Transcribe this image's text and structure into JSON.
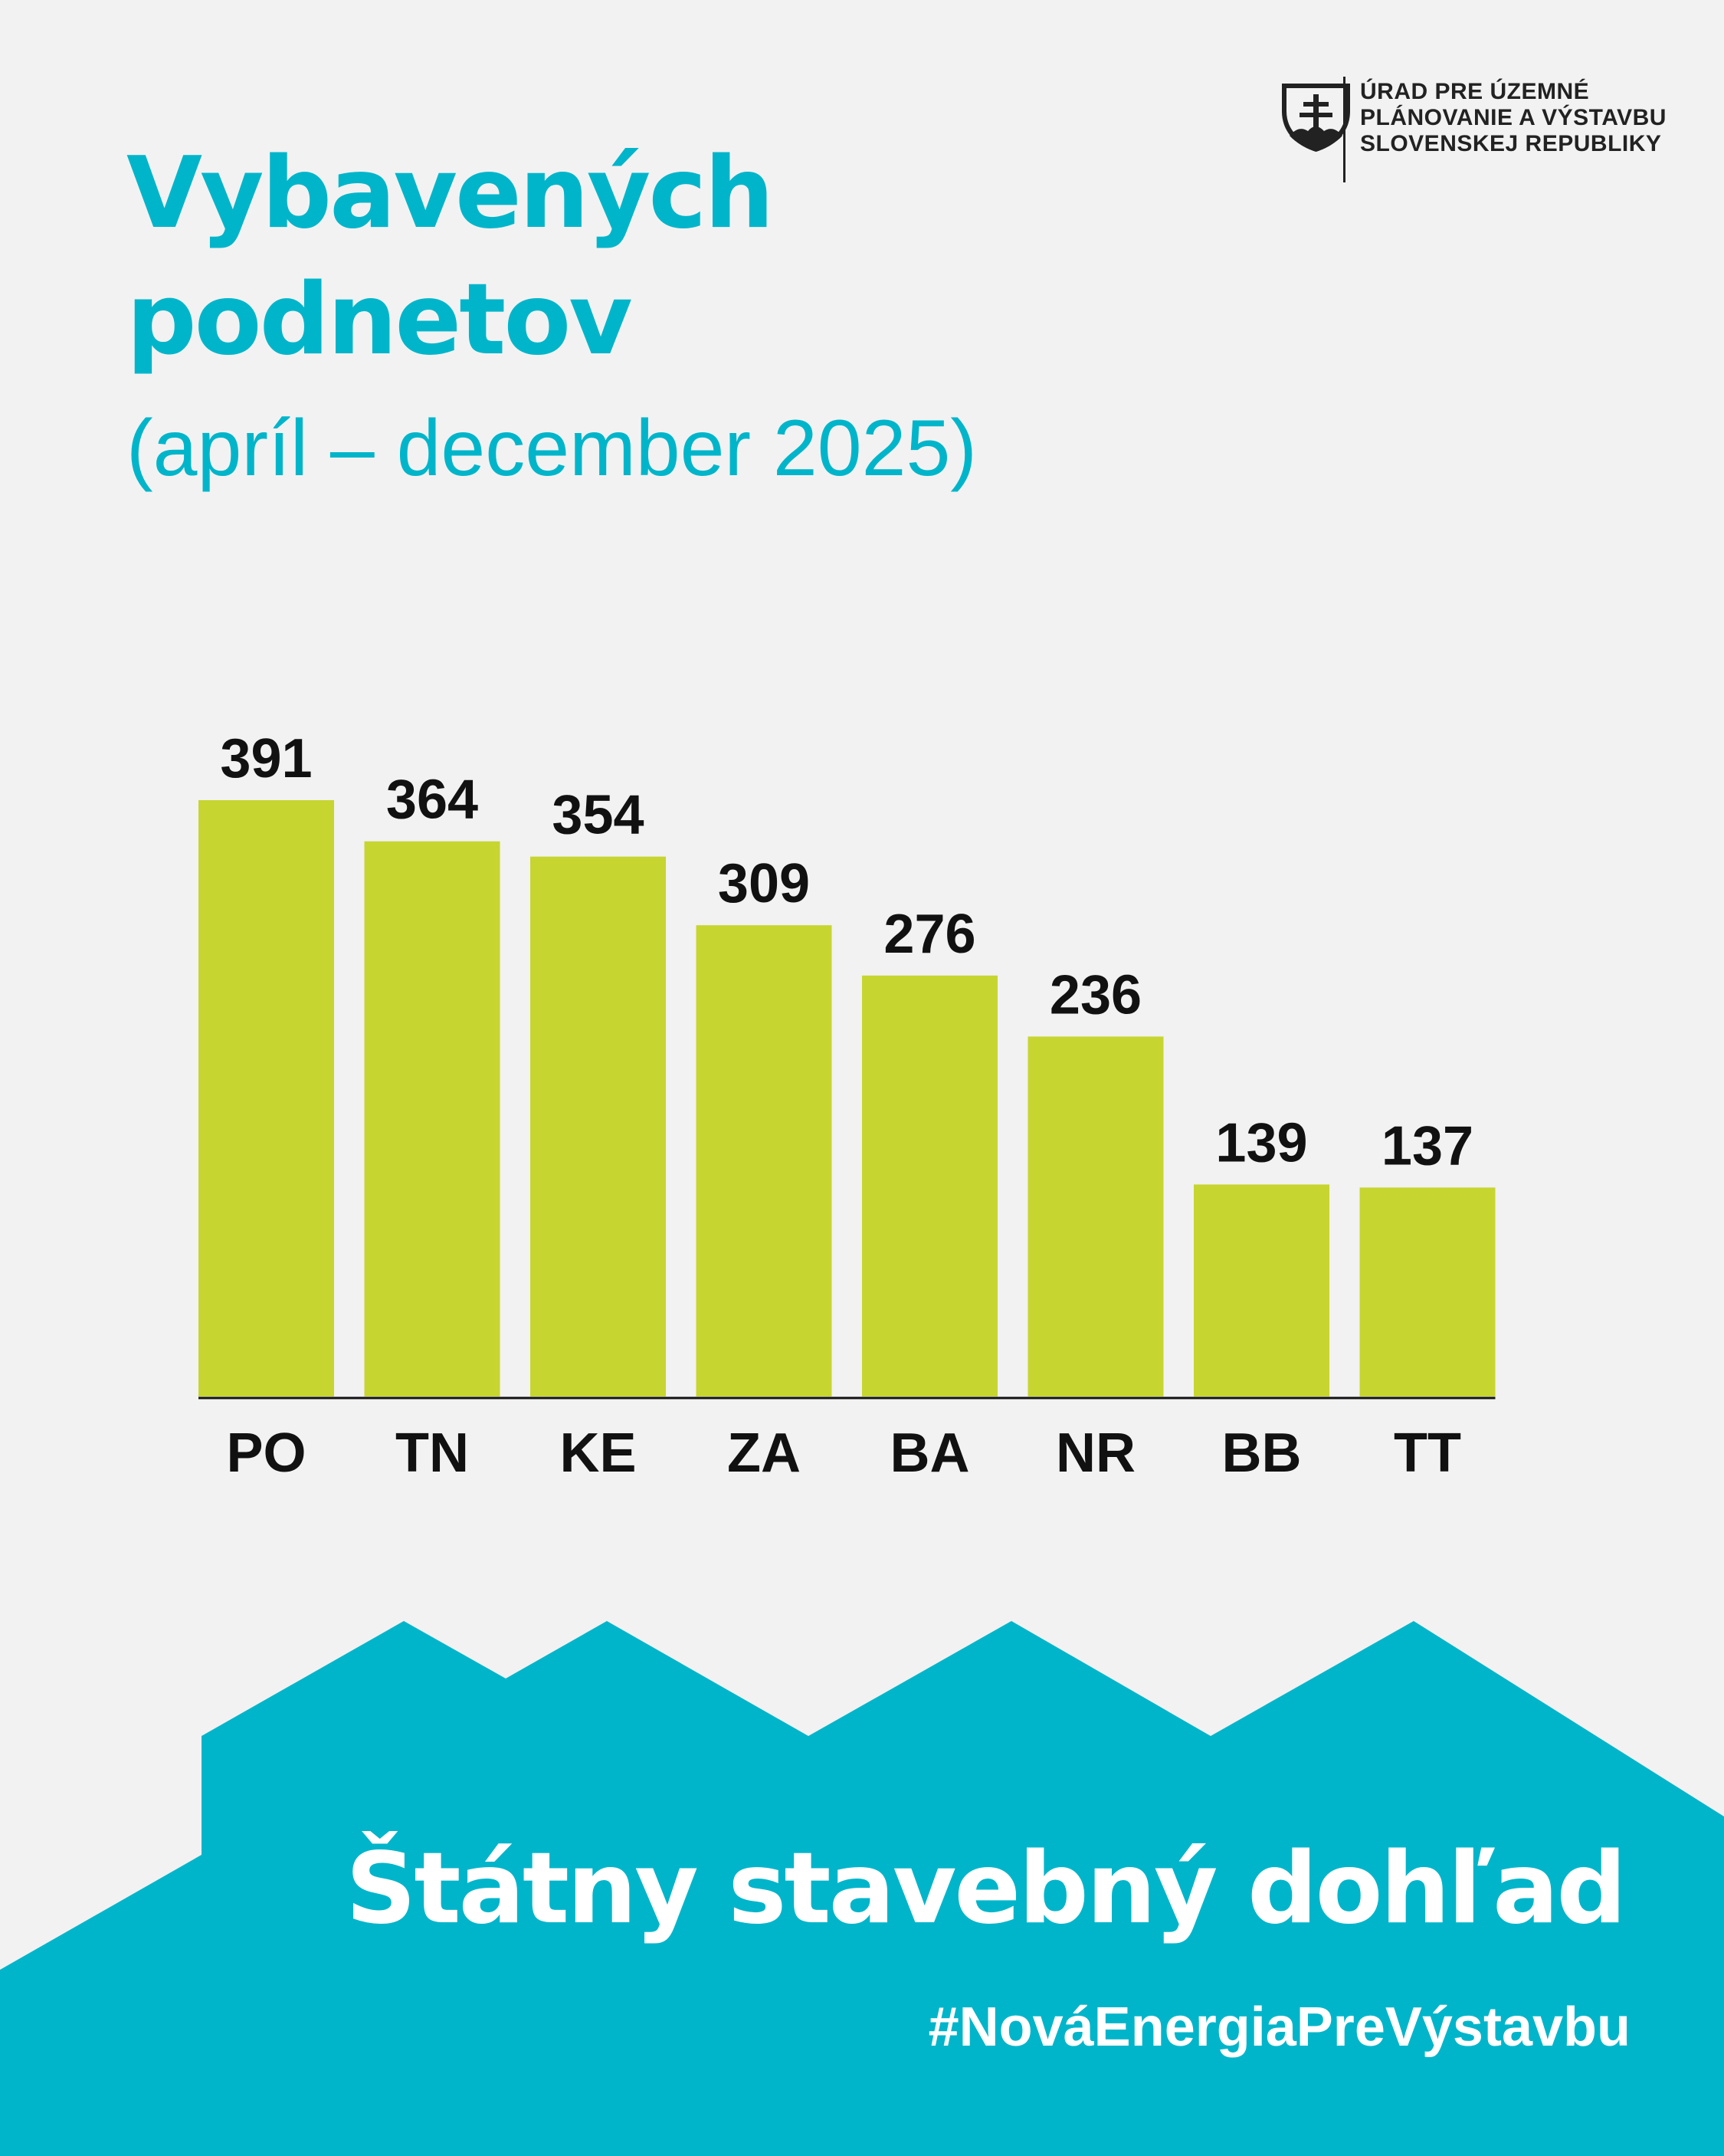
{
  "header": {
    "title_line1": "Vybavených",
    "title_line2": "podnetov",
    "subtitle": "(apríl – december 2025)"
  },
  "agency": {
    "logo_icon": "slovak-coat-of-arms-icon",
    "line1": "ÚRAD PRE ÚZEMNÉ",
    "line2": "PLÁNOVANIE A VÝSTAVBU",
    "line3": "SLOVENSKEJ REPUBLIKY"
  },
  "chart_data": {
    "type": "bar",
    "categories": [
      "PO",
      "TN",
      "KE",
      "ZA",
      "BA",
      "NR",
      "BB",
      "TT"
    ],
    "values": [
      391,
      364,
      354,
      309,
      276,
      236,
      139,
      137
    ],
    "title": "Vybavených podnetov",
    "subtitle": "(apríl – december 2025)",
    "xlabel": "",
    "ylabel": "",
    "data_labels": true,
    "grid": false,
    "legend": "none",
    "bar_color": "#c7d530"
  },
  "footer": {
    "title": "Štátny stavebný dohľad",
    "hashtag": "#NováEnergiaPreVýstavbu"
  },
  "colors": {
    "accent": "#00b5ca",
    "bar": "#c7d530",
    "background": "#f2f2f2"
  }
}
